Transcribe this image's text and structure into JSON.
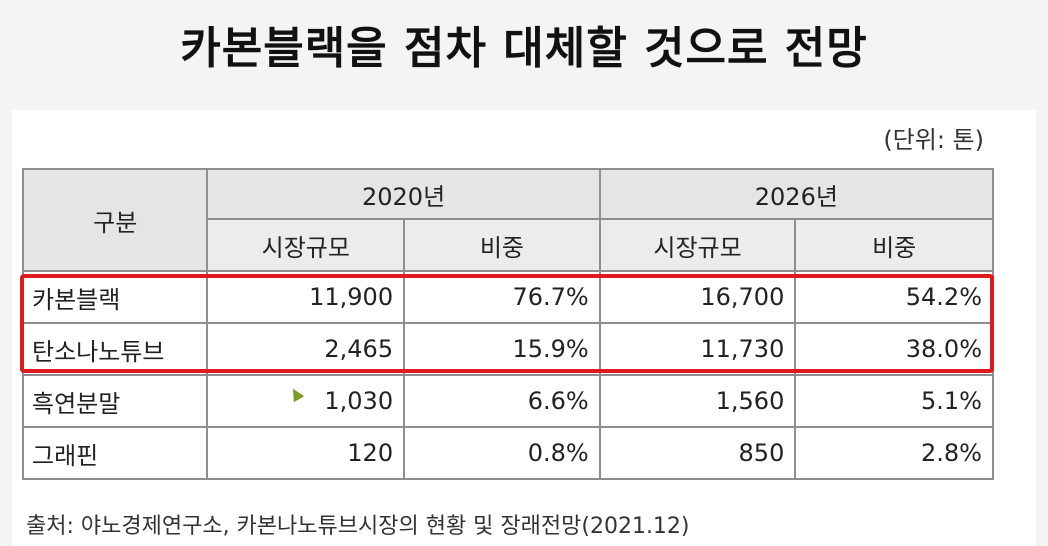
{
  "title": "카본블랙을 점차 대체할 것으로 전망",
  "unit_note": "(단위: 톤)",
  "table": {
    "corner": "구분",
    "years": [
      "2020년",
      "2026년"
    ],
    "subheaders": [
      "시장규모",
      "비중",
      "시장규모",
      "비중"
    ],
    "rows": [
      {
        "name": "카본블랙",
        "v2020": "11,900",
        "s2020": "76.7%",
        "v2026": "16,700",
        "s2026": "54.2%"
      },
      {
        "name": "탄소나노튜브",
        "v2020": "2,465",
        "s2020": "15.9%",
        "v2026": "11,730",
        "s2026": "38.0%"
      },
      {
        "name": "흑연분말",
        "v2020": "1,030",
        "s2020": "6.6%",
        "v2026": "1,560",
        "s2026": "5.1%"
      },
      {
        "name": "그래핀",
        "v2020": "120",
        "s2020": "0.8%",
        "v2026": "850",
        "s2026": "2.8%"
      }
    ]
  },
  "source": "출처: 야노경제연구소, 카본나노튜브시장의 현황 및 장래전망(2021.12)",
  "colors": {
    "highlight": "#e0191d",
    "header_bg": "#e5e5e5"
  }
}
